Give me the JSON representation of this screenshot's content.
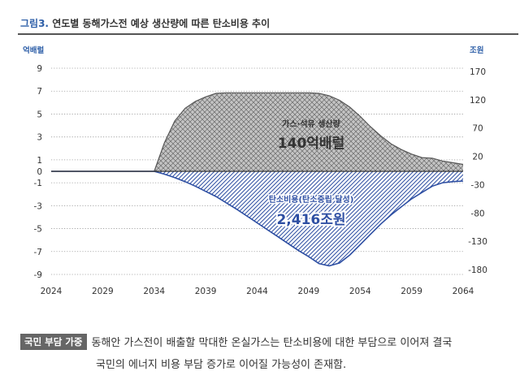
{
  "figure": {
    "label": "그림3.",
    "title": "연도별 동해가스전 예상 생산량에 따른 탄소비용 추이"
  },
  "chart_data": {
    "type": "area",
    "left_axis": {
      "unit": "억배럴",
      "ticks": [
        9,
        7,
        5,
        3,
        1,
        0,
        -1,
        -3,
        -5,
        -7,
        -9
      ],
      "range": [
        -9,
        9
      ]
    },
    "right_axis": {
      "unit": "조원",
      "ticks": [
        170,
        120,
        70,
        20,
        -30,
        -80,
        -130,
        -180
      ]
    },
    "x": {
      "ticks": [
        "2024",
        "2029",
        "2034",
        "2039",
        "2044",
        "2049",
        "2054",
        "2059",
        "2064"
      ],
      "range": [
        2024,
        2064
      ]
    },
    "grid": "dotted-horizontal",
    "series": [
      {
        "name": "가스·석유 생산량",
        "total": "140억배럴",
        "color": "#555555",
        "fill": "crosshatch-gray",
        "axis": "left",
        "points": [
          [
            2024,
            0
          ],
          [
            2034,
            0
          ],
          [
            2035,
            2.5
          ],
          [
            2036,
            4.4
          ],
          [
            2037,
            5.5
          ],
          [
            2038,
            6.1
          ],
          [
            2039,
            6.5
          ],
          [
            2040,
            6.8
          ],
          [
            2041,
            6.85
          ],
          [
            2042,
            6.85
          ],
          [
            2043,
            6.85
          ],
          [
            2044,
            6.85
          ],
          [
            2045,
            6.85
          ],
          [
            2046,
            6.85
          ],
          [
            2047,
            6.85
          ],
          [
            2048,
            6.85
          ],
          [
            2049,
            6.85
          ],
          [
            2050,
            6.8
          ],
          [
            2051,
            6.6
          ],
          [
            2052,
            6.2
          ],
          [
            2053,
            5.6
          ],
          [
            2054,
            4.8
          ],
          [
            2055,
            3.9
          ],
          [
            2056,
            3.1
          ],
          [
            2057,
            2.4
          ],
          [
            2058,
            1.9
          ],
          [
            2059,
            1.5
          ],
          [
            2060,
            1.2
          ],
          [
            2061,
            1.15
          ],
          [
            2062,
            0.9
          ],
          [
            2063,
            0.75
          ],
          [
            2064,
            0.6
          ]
        ]
      },
      {
        "name": "탄소비용(탄소중립 달성)",
        "total": "2,416조원",
        "color": "#2e4fa3",
        "fill": "diagonal-hatch-blue",
        "axis": "left",
        "points": [
          [
            2024,
            0
          ],
          [
            2034,
            0
          ],
          [
            2035,
            -0.25
          ],
          [
            2036,
            -0.55
          ],
          [
            2037,
            -0.9
          ],
          [
            2038,
            -1.3
          ],
          [
            2039,
            -1.75
          ],
          [
            2040,
            -2.2
          ],
          [
            2041,
            -2.75
          ],
          [
            2042,
            -3.3
          ],
          [
            2043,
            -3.9
          ],
          [
            2044,
            -4.5
          ],
          [
            2045,
            -5.1
          ],
          [
            2046,
            -5.7
          ],
          [
            2047,
            -6.3
          ],
          [
            2048,
            -6.9
          ],
          [
            2049,
            -7.45
          ],
          [
            2050,
            -8.05
          ],
          [
            2051,
            -8.25
          ],
          [
            2052,
            -8.0
          ],
          [
            2053,
            -7.3
          ],
          [
            2054,
            -6.4
          ],
          [
            2055,
            -5.5
          ],
          [
            2056,
            -4.6
          ],
          [
            2057,
            -3.8
          ],
          [
            2058,
            -3.1
          ],
          [
            2059,
            -2.4
          ],
          [
            2060,
            -1.85
          ],
          [
            2061,
            -1.3
          ],
          [
            2062,
            -1.0
          ],
          [
            2063,
            -0.9
          ],
          [
            2064,
            -0.85
          ]
        ]
      }
    ]
  },
  "note": {
    "badge": "국민 부담 가중",
    "line1": "동해안 가스전이 배출할 막대한 온실가스는 탄소비용에 대한 부담으로 이어져 결국",
    "line2": "국민의 에너지 비용 부담 증가로 이어질 가능성이 존재함."
  }
}
